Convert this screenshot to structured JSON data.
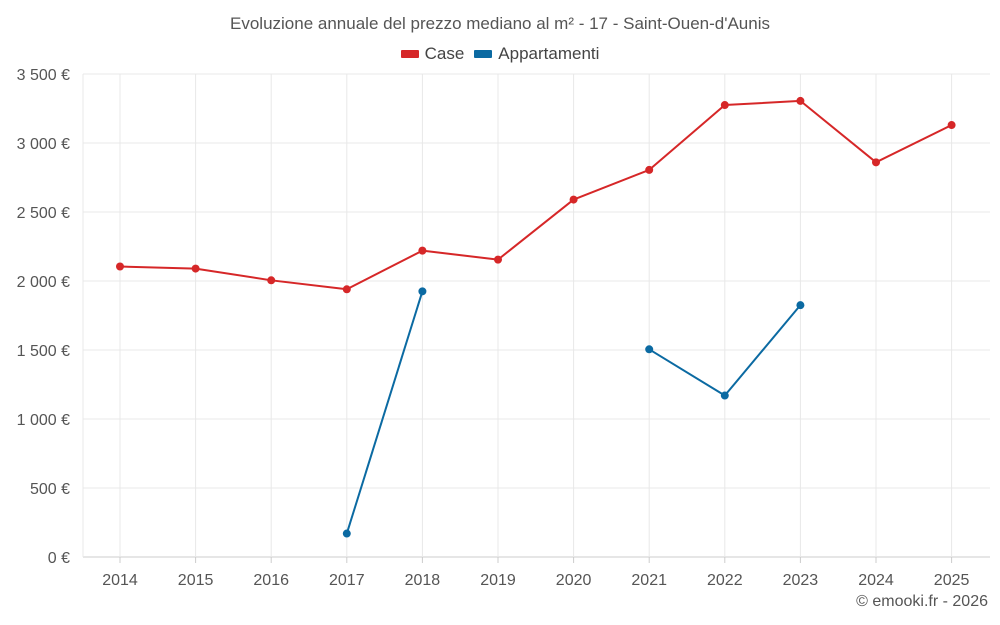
{
  "colors": {
    "case": "#d62728",
    "appartamenti": "#0b6aa2",
    "grid": "#e8e8e8",
    "axis_text": "#555555"
  },
  "chart_data": {
    "type": "line",
    "title": "Evoluzione annuale del prezzo mediano al m² - 17 - Saint-Ouen-d'Aunis",
    "xlabel": "",
    "ylabel": "",
    "categories": [
      "2014",
      "2015",
      "2016",
      "2017",
      "2018",
      "2019",
      "2020",
      "2021",
      "2022",
      "2023",
      "2024",
      "2025"
    ],
    "ylim": [
      0,
      3500
    ],
    "yticks": [
      0,
      500,
      1000,
      1500,
      2000,
      2500,
      3000,
      3500
    ],
    "ytick_labels": [
      "0 €",
      "500 €",
      "1 000 €",
      "1 500 €",
      "2 000 €",
      "2 500 €",
      "3 000 €",
      "3 500 €"
    ],
    "legend_position": "top-center",
    "series": [
      {
        "name": "Case",
        "color_key": "case",
        "values": [
          2105,
          2090,
          2005,
          1940,
          2220,
          2155,
          2590,
          2805,
          3275,
          3305,
          2860,
          3130
        ]
      },
      {
        "name": "Appartamenti",
        "color_key": "appartamenti",
        "values": [
          null,
          null,
          null,
          170,
          1925,
          null,
          null,
          1505,
          1170,
          1825,
          null,
          null
        ]
      }
    ]
  },
  "footer": {
    "credit": "© emooki.fr - 2026"
  }
}
